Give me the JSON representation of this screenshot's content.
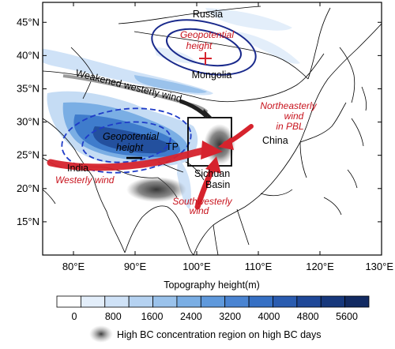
{
  "map": {
    "lat_ticks": [
      "45°N",
      "40°N",
      "35°N",
      "30°N",
      "25°N",
      "20°N",
      "15°N"
    ],
    "lon_ticks": [
      "80°E",
      "90°E",
      "100°E",
      "110°E",
      "120°E",
      "130°E"
    ],
    "lat_range": [
      10,
      48
    ],
    "lon_range": [
      75,
      130
    ],
    "labels": {
      "russia": "Russia",
      "mongolia": "Mongolia",
      "china": "China",
      "india": "India",
      "tp": "TP",
      "sichuan": "Sichuan",
      "basin": "Basin",
      "geo_north_1": "Geopotential",
      "geo_north_2": "height",
      "geo_south_1": "Geopotential",
      "geo_south_2": "height",
      "weak_westerly": "Weakened westerly wind",
      "ne_wind_1": "Northeasterly",
      "ne_wind_2": "wind",
      "ne_wind_3": "in PBL",
      "westerly": "Westerly wind",
      "sw_wind_1": "Southwesterly",
      "sw_wind_2": "wind"
    },
    "colors": {
      "ellipse_navy": "#1a2a8c",
      "dashed_blue": "#1f3cc8",
      "arrow_red": "#d6232d",
      "label_red": "#c8141e",
      "arrow_gray": "#9a9a9a"
    }
  },
  "colorbar": {
    "title": "Topography height(m)",
    "labels": [
      "0",
      "800",
      "1600",
      "2400",
      "3200",
      "4000",
      "4800",
      "5600"
    ],
    "colors": [
      "#ffffff",
      "#e3eefa",
      "#cfe2f7",
      "#b5d2f1",
      "#9ac2eb",
      "#7aaee4",
      "#5f99dc",
      "#4a84d2",
      "#3670c4",
      "#2a5cb0",
      "#1f4898",
      "#17387c",
      "#122a62"
    ]
  },
  "legend": {
    "bc_label": "High BC concentration region on high BC days"
  }
}
